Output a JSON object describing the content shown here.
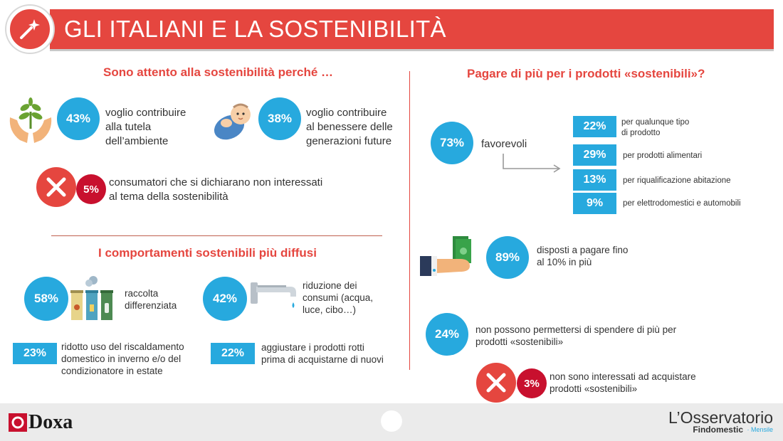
{
  "header": {
    "title": "GLI ITALIANI E LA SOSTENIBILITÀ"
  },
  "left_top": {
    "title": "Sono attento alla sostenibilità perché …",
    "items": [
      {
        "pct": "43%",
        "lines": [
          "voglio contribuire",
          "alla tutela",
          "dell’ambiente"
        ],
        "icon": "plant-hands-icon"
      },
      {
        "pct": "38%",
        "lines": [
          "voglio contribuire",
          "al benessere delle",
          "generazioni future"
        ],
        "icon": "baby-icon"
      }
    ],
    "not_interested": {
      "pct": "5%",
      "lines": [
        "consumatori che si dichiarano non interessati",
        "al tema della sostenibilità"
      ]
    }
  },
  "left_bottom": {
    "title": "I comportamenti sostenibili più diffusi",
    "recycling": {
      "pct": "58%",
      "lines": [
        "raccolta",
        "differenziata"
      ]
    },
    "consumption": {
      "pct": "42%",
      "lines": [
        "riduzione dei",
        "consumi (acqua,",
        "luce, cibo…)"
      ]
    },
    "heating": {
      "pct": "23%",
      "lines": [
        "ridotto uso del riscaldamento",
        "domestico in inverno e/o del",
        "condizionatore in estate"
      ]
    },
    "repair": {
      "pct": "22%",
      "lines": [
        "aggiustare i prodotti rotti",
        "prima di acquistarne di nuovi"
      ]
    }
  },
  "right": {
    "title": "Pagare di più per i prodotti «sostenibili»?",
    "favorevoli": {
      "pct": "73%",
      "label": "favorevoli",
      "breakdown": [
        {
          "pct": "22%",
          "lines": [
            "per qualunque tipo",
            "di prodotto"
          ]
        },
        {
          "pct": "29%",
          "lines": [
            "per prodotti alimentari"
          ]
        },
        {
          "pct": "13%",
          "lines": [
            "per riqualificazione abitazione"
          ]
        },
        {
          "pct": "9%",
          "lines": [
            "per elettrodomestici e automobili"
          ]
        }
      ]
    },
    "pay_more": {
      "pct": "89%",
      "lines": [
        "disposti a pagare fino",
        "al 10% in più"
      ]
    },
    "cannot": {
      "pct": "24%",
      "lines": [
        "non possono permettersi di spendere di più per",
        "prodotti «sostenibili»"
      ]
    },
    "not_interested": {
      "pct": "3%",
      "lines": [
        "non sono interessati ad acquistare",
        "prodotti «sostenibili»"
      ]
    }
  },
  "footer": {
    "left_logo": "Doxa",
    "right_logo_title": "L’Osservatorio",
    "right_logo_sub": "Findomestic",
    "right_logo_tag": "· Mensile"
  },
  "colors": {
    "accent_red": "#e5463f",
    "blue": "#27a9de",
    "dark_red": "#c8102e"
  }
}
